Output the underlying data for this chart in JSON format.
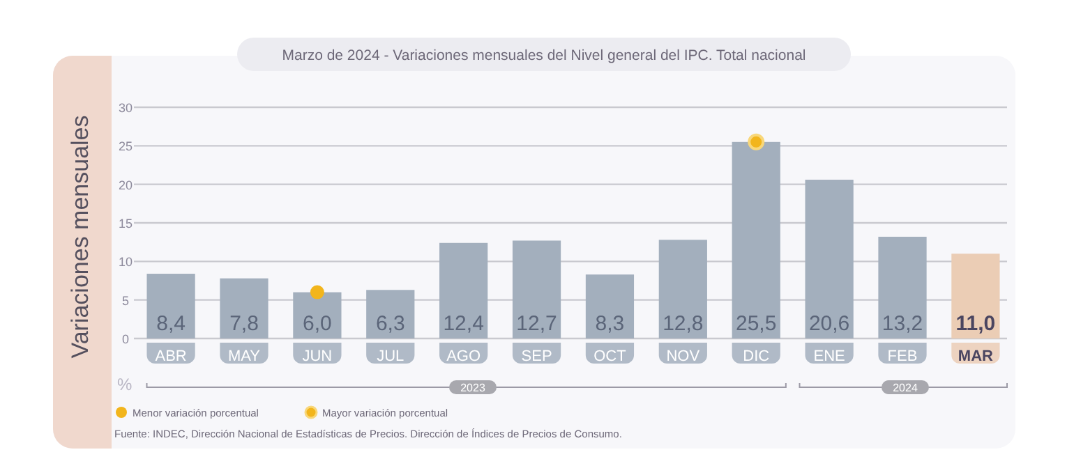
{
  "chart_data": {
    "type": "bar",
    "title": "Marzo de 2024 - Variaciones mensuales del Nivel general del IPC. Total nacional",
    "ylabel": "Variaciones mensuales",
    "categories": [
      "ABR",
      "MAY",
      "JUN",
      "JUL",
      "AGO",
      "SEP",
      "OCT",
      "NOV",
      "DIC",
      "ENE",
      "FEB",
      "MAR"
    ],
    "series": [
      {
        "colors": [
          "#a3afbd",
          "#a3afbd",
          "#a3afbd",
          "#a3afbd",
          "#a3afbd",
          "#a3afbd",
          "#a3afbd",
          "#a3afbd",
          "#a3afbd",
          "#a3afbd",
          "#a3afbd",
          "#ebcdb5"
        ],
        "values": [
          8.4,
          7.8,
          6.0,
          6.3,
          12.4,
          12.7,
          8.3,
          12.8,
          25.5,
          20.6,
          13.2,
          11.0
        ],
        "value_labels": [
          "8,4",
          "7,8",
          "6,0",
          "6,3",
          "12,4",
          "12,7",
          "8,3",
          "12,8",
          "25,5",
          "20,6",
          "13,2",
          "11,0"
        ]
      },
      {
        "type": "scatter",
        "name": "Menor variación porcentual",
        "color": "#f2b51c",
        "x": [
          "JUN"
        ],
        "values": [
          6.0
        ]
      },
      {
        "type": "scatter",
        "name": "Mayor variación porcentual",
        "color": "#f2b51c",
        "x": [
          "DIC"
        ],
        "values": [
          25.5
        ]
      }
    ],
    "ylim": [
      0,
      30
    ],
    "yticks": [
      0,
      5,
      10,
      15,
      20,
      25,
      30
    ],
    "grid": "y",
    "legend": "bottom left",
    "marker": "circle",
    "annotations": [
      "%",
      "2023",
      "2024",
      "Fuente: INDEC, Dirección Nacional de Estadísticas de Precios. Dirección de Índices de Precios de Consumo."
    ]
  }
}
